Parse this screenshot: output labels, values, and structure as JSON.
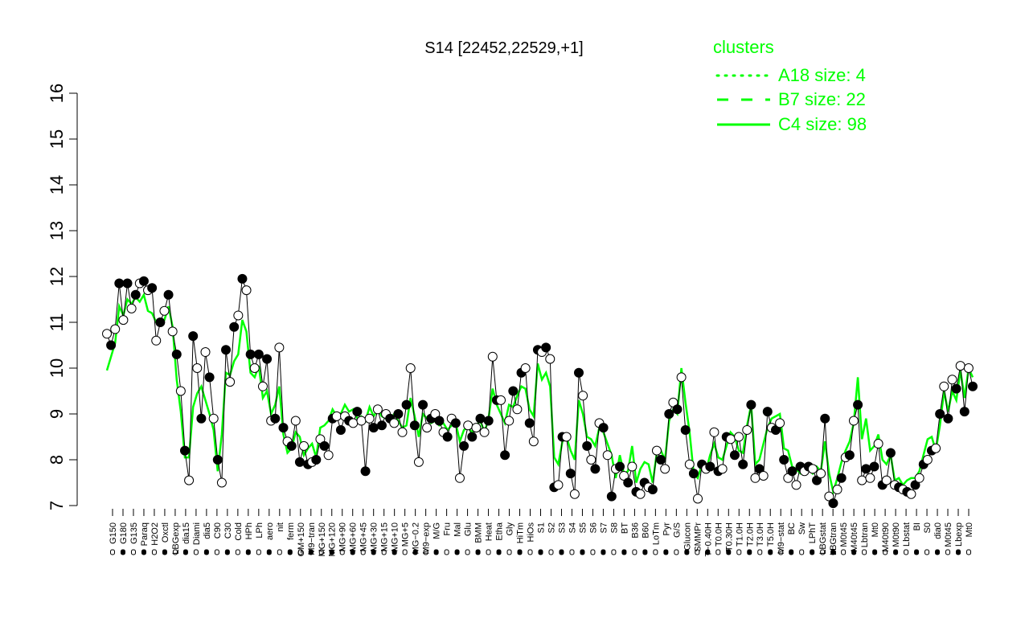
{
  "chart_data": {
    "type": "line",
    "title": "S14 [22452,22529,+1]",
    "ylim": [
      7,
      16
    ],
    "yticks": [
      7,
      8,
      9,
      10,
      11,
      12,
      13,
      14,
      15,
      16
    ],
    "legend": {
      "title": "clusters",
      "placement": "top-right",
      "entries": [
        {
          "label": "A18 size: 4",
          "style": "dotted"
        },
        {
          "label": "B7 size: 22",
          "style": "dashed"
        },
        {
          "label": "C4 size: 98",
          "style": "solid"
        }
      ]
    },
    "colors": {
      "series": "#00ff00",
      "points": "#000000",
      "open_fill": "#ffffff"
    },
    "x_tick_labels": [
      "G150",
      "G180",
      "G135",
      "Paraq",
      "H2O2",
      "Oxctl",
      "LBGexp",
      "dia15",
      "Diami",
      "dia5",
      "C90",
      "C30",
      "Cold",
      "HPh",
      "LPh",
      "aero",
      "nit",
      "ferm",
      "GM+150",
      "M9−tran",
      "MG+150",
      "MG+120",
      "MG+90",
      "MG+60",
      "MG+45",
      "MG+30",
      "MG+15",
      "MG+10",
      "MG+5",
      "MG−0.2",
      "M9−exp",
      "M/G",
      "Fru",
      "Mal",
      "Glu",
      "BMM",
      "Heat",
      "Etha",
      "Gly",
      "HiTm",
      "HiOs",
      "S1",
      "S2",
      "S3",
      "S4",
      "S5",
      "S6",
      "S7",
      "S8",
      "BT",
      "B36",
      "B60",
      "LoTm",
      "Pyr",
      "G/S",
      "Glucon",
      "SMMPr",
      "T−0.40H",
      "T0.0H",
      "T0.30H",
      "T1.0H",
      "T2.0H",
      "T3.0H",
      "T5.0H",
      "M9−stat",
      "BC",
      "Sw",
      "LPhT",
      "LBGstat",
      "LBGtran",
      "M0t45",
      "M40t45",
      "Lbtran",
      "Mt0",
      "M40t90",
      "M0t90",
      "Lbstat",
      "BI",
      "S0",
      "dia0",
      "M0t45",
      "Lbexp",
      "Mt0"
    ],
    "main_series": [
      10.75,
      10.5,
      10.85,
      11.85,
      11.05,
      11.85,
      11.3,
      11.6,
      11.85,
      11.9,
      11.7,
      11.75,
      10.6,
      11.0,
      11.25,
      11.6,
      10.8,
      10.3,
      9.5,
      8.2,
      7.55,
      10.7,
      10.0,
      8.9,
      10.35,
      9.8,
      8.9,
      8.0,
      7.5,
      10.4,
      9.7,
      10.9,
      11.15,
      11.95,
      11.7,
      10.3,
      10.0,
      10.3,
      9.6,
      10.2,
      8.85,
      8.9,
      10.45,
      8.7,
      8.4,
      8.3,
      8.85,
      7.95,
      8.3,
      7.9,
      7.95,
      8.0,
      8.45,
      8.3,
      8.1,
      8.9,
      8.95,
      8.65,
      8.95,
      8.85,
      8.8,
      9.05,
      8.85,
      7.75,
      8.9,
      8.7,
      9.1,
      8.75,
      9.0,
      8.9,
      8.8,
      9.0,
      8.6,
      9.2,
      10.0,
      8.75,
      7.95,
      9.2,
      8.7,
      8.9,
      9.0,
      8.85,
      8.6,
      8.5,
      8.9,
      8.8,
      7.6,
      8.3,
      8.75,
      8.5,
      8.7,
      8.9,
      8.6,
      8.85,
      10.25,
      9.3,
      9.3,
      8.1,
      8.85,
      9.5,
      9.1,
      9.9,
      10.0,
      8.8,
      8.4,
      10.4,
      10.35,
      10.45,
      10.2,
      7.4,
      7.45,
      8.5,
      8.5,
      7.7,
      7.25,
      9.9,
      9.4,
      8.3,
      8.0,
      7.8,
      8.8,
      8.7,
      8.1,
      7.2,
      7.8,
      7.85,
      7.65,
      7.5,
      7.85,
      7.3,
      7.25,
      7.5,
      7.4,
      7.35,
      8.2,
      8.0,
      7.8,
      9.0,
      9.25,
      9.1,
      9.8,
      8.65,
      7.9,
      7.7,
      7.15,
      7.9,
      7.8,
      7.85,
      8.6,
      7.75,
      7.8,
      8.5,
      8.45,
      8.1,
      8.5,
      7.9,
      8.65,
      9.2,
      7.6,
      7.8,
      7.65,
      9.05,
      8.7,
      8.65,
      8.8,
      8.0,
      7.6,
      7.75,
      7.45,
      7.85,
      7.75,
      7.85,
      7.8,
      7.55,
      7.7,
      8.9,
      7.2,
      7.05,
      7.35,
      7.6,
      8.05,
      8.1,
      8.85,
      9.2,
      7.55,
      7.8,
      7.6,
      7.85,
      8.35,
      7.45,
      7.55,
      8.15,
      7.45,
      7.4,
      7.35,
      7.3,
      7.25,
      7.45,
      7.6,
      7.9,
      8.0,
      8.2,
      8.25,
      9.0,
      9.6,
      8.9,
      9.75,
      9.55,
      10.05,
      9.05,
      10.0,
      9.6
    ],
    "secondary_series": [
      9.95,
      10.25,
      10.55,
      11.35,
      11.15,
      11.5,
      11.4,
      11.55,
      11.45,
      11.6,
      11.25,
      11.2,
      11.0,
      10.95,
      11.05,
      11.35,
      10.9,
      9.75,
      9.05,
      8.05,
      8.05,
      9.15,
      9.45,
      9.6,
      9.3,
      9.0,
      8.65,
      7.75,
      8.55,
      9.9,
      9.85,
      10.15,
      10.3,
      11.05,
      10.8,
      9.9,
      9.8,
      10.05,
      9.35,
      9.5,
      9.0,
      9.2,
      9.6,
      8.55,
      8.15,
      8.25,
      8.6,
      8.5,
      8.1,
      8.25,
      8.35,
      8.05,
      8.7,
      8.75,
      8.85,
      9.1,
      8.95,
      9.0,
      9.2,
      9.05,
      9.1,
      8.9,
      8.95,
      8.85,
      9.15,
      8.95,
      9.1,
      8.95,
      8.9,
      8.85,
      9.0,
      8.85,
      8.7,
      8.75,
      9.35,
      8.95,
      8.5,
      9.0,
      8.9,
      8.8,
      8.85,
      8.75,
      8.8,
      8.65,
      8.75,
      8.8,
      8.4,
      8.65,
      8.7,
      8.6,
      8.75,
      8.85,
      8.6,
      8.9,
      9.55,
      9.2,
      9.0,
      8.8,
      9.2,
      9.15,
      9.4,
      9.6,
      9.55,
      9.1,
      8.95,
      10.1,
      9.75,
      9.9,
      9.6,
      8.05,
      7.9,
      8.4,
      8.5,
      8.2,
      8.0,
      9.3,
      9.0,
      8.5,
      8.45,
      8.3,
      8.7,
      8.6,
      8.35,
      8.1,
      7.6,
      8.1,
      7.7,
      7.75,
      8.3,
      7.5,
      7.8,
      7.95,
      7.9,
      7.5,
      8.15,
      8.2,
      8.0,
      8.85,
      9.1,
      9.0,
      10.0,
      9.25,
      8.6,
      7.7,
      7.6,
      7.9,
      7.75,
      8.1,
      8.35,
      8.05,
      8.0,
      8.3,
      8.6,
      8.5,
      8.2,
      8.15,
      8.75,
      9.2,
      7.9,
      8.0,
      8.35,
      8.7,
      8.9,
      8.95,
      9.0,
      8.25,
      8.2,
      7.85,
      7.8,
      7.7,
      7.75,
      7.8,
      7.7,
      7.85,
      7.75,
      8.4,
      7.7,
      7.3,
      7.6,
      7.95,
      8.2,
      8.4,
      8.8,
      9.8,
      8.45,
      8.9,
      8.2,
      8.3,
      8.55,
      8.0,
      7.9,
      8.1,
      7.55,
      7.6,
      7.45,
      7.55,
      7.6,
      7.6,
      7.75,
      8.1,
      8.45,
      8.5,
      8.2,
      8.75,
      9.5,
      9.05,
      9.5,
      9.3,
      9.95,
      9.35,
      10.0,
      9.8
    ],
    "markers_open_every": 2
  }
}
